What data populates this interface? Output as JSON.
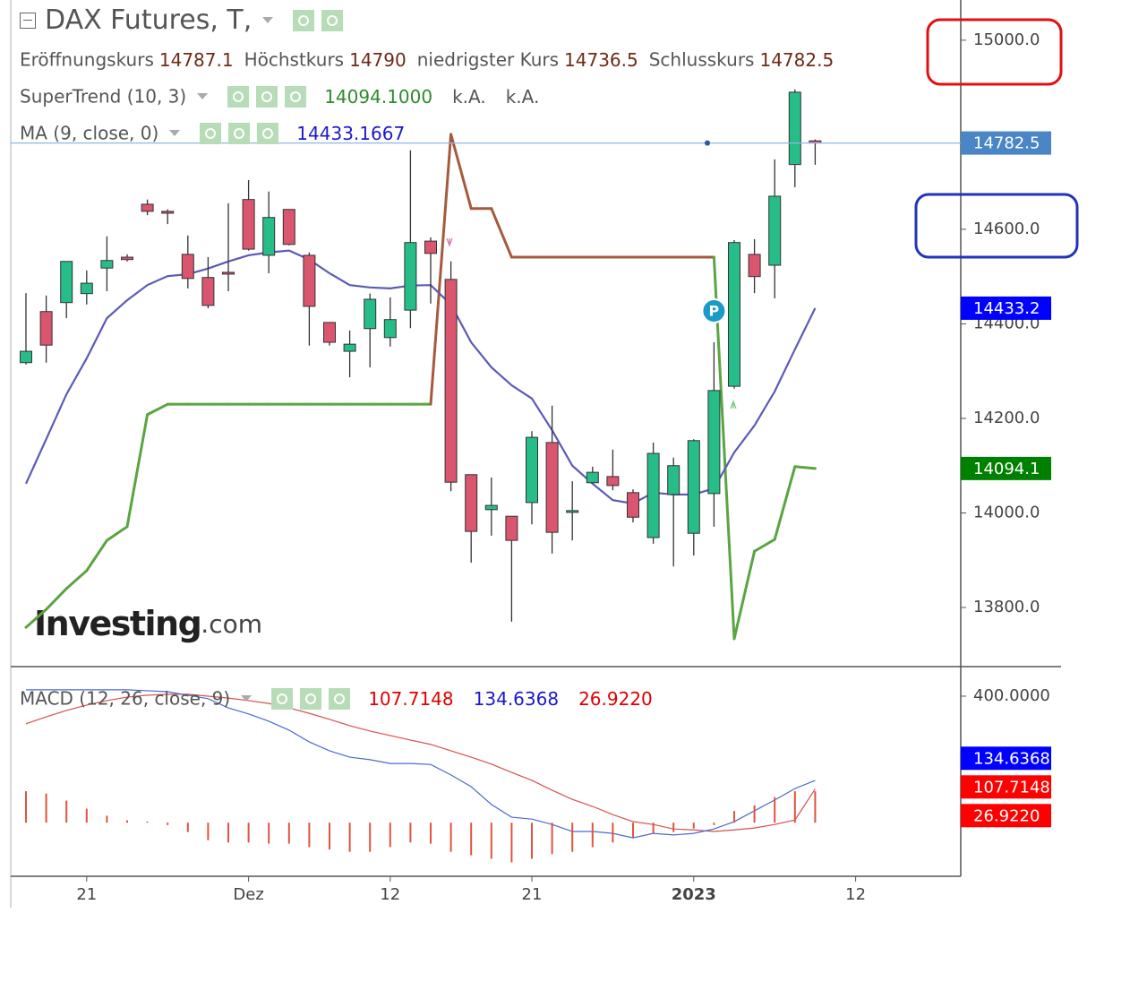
{
  "chart_data": [
    {
      "type": "candlestick",
      "title": "DAX Futures, T,",
      "ohlc_labels": [
        "Eröffnungskurs",
        "Höchstkurs",
        "niedrigster Kurs",
        "Schlusskurs"
      ],
      "open": [
        14318,
        14426,
        14445,
        14464,
        14518,
        14541,
        14653,
        14638,
        14547,
        14498,
        14509,
        14663,
        14545,
        14642,
        14545,
        14403,
        14342,
        14390,
        14371,
        14429,
        14575,
        14494,
        14081,
        14007,
        13993,
        14022,
        14149,
        14003,
        14064,
        14077,
        14043,
        13948,
        14039,
        13957,
        14041,
        14268,
        14547,
        14524,
        14737,
        14787.1,
        null,
        null
      ],
      "high": [
        14465,
        14460,
        14532,
        14513,
        14585,
        14547,
        14663,
        14642,
        14587,
        14541,
        14655,
        14704,
        14680,
        14642,
        14551,
        14403,
        14386,
        14464,
        14456,
        14767,
        14583,
        14532,
        14081,
        14075,
        13993,
        14173,
        14227,
        14067,
        14098,
        14134,
        14050,
        14149,
        14117,
        14156,
        14361,
        14577,
        14579,
        14748,
        14896,
        14790,
        null,
        null
      ],
      "low": [
        14314,
        14318,
        14412,
        14441,
        14469,
        14532,
        14630,
        14611,
        14475,
        14433,
        14469,
        14555,
        14507,
        14566,
        14354,
        14354,
        14287,
        14308,
        14352,
        14391,
        14443,
        14046,
        13895,
        13952,
        13770,
        13976,
        13914,
        13942,
        14062,
        14048,
        13980,
        13935,
        13887,
        13910,
        13971,
        14263,
        14465,
        14454,
        14689,
        14736.5,
        null,
        null
      ],
      "close": [
        14342,
        14355,
        14532,
        14486,
        14534,
        14536,
        14638,
        14634,
        14496,
        14439,
        14507,
        14558,
        14625,
        14568,
        14437,
        14361,
        14357,
        14452,
        14409,
        14572,
        14549,
        14065,
        13961,
        14016,
        13942,
        14160,
        13959,
        14005,
        14086,
        14058,
        13991,
        14126,
        14100,
        14153,
        14259,
        14572,
        14500,
        14670,
        14890,
        14782.5,
        null,
        null
      ],
      "up_color": "#26bd88",
      "down_color": "#d9566e",
      "last_price_color": "#4a86c5",
      "ylim": [
        13675,
        15085
      ],
      "yticks": [
        {
          "value": 13800,
          "label": "13800.0"
        },
        {
          "value": 14000,
          "label": "14000.0"
        },
        {
          "value": 14200,
          "label": "14200.0"
        },
        {
          "value": 14400,
          "label": "14400.0"
        },
        {
          "value": 14600,
          "label": "14600.0"
        },
        {
          "value": 15000,
          "label": "15000.0"
        }
      ],
      "overlays": [
        {
          "name": "SuperTrend (10, 3)",
          "type": "line",
          "values": [
            13758,
            13796,
            13840,
            13878,
            13942,
            13971,
            14208,
            14230,
            14230,
            14230,
            14230,
            14230,
            14230,
            14230,
            14230,
            14230,
            14230,
            14230,
            14230,
            14230,
            14230,
            14801,
            14644,
            14644,
            14541,
            14541,
            14541,
            14541,
            14541,
            14541,
            14541,
            14541,
            14541,
            14541,
            14541,
            13734,
            13919,
            13944,
            14098,
            14094.1,
            null,
            null
          ],
          "colors": [
            "#5aa540",
            "#5aa540",
            "#5aa540",
            "#5aa540",
            "#5aa540",
            "#5aa540",
            "#5aa540",
            "#5aa540",
            "#5aa540",
            "#5aa540",
            "#5aa540",
            "#5aa540",
            "#5aa540",
            "#5aa540",
            "#5aa540",
            "#5aa540",
            "#5aa540",
            "#5aa540",
            "#5aa540",
            "#5aa540",
            "#5aa540",
            "#a65a3d",
            "#a65a3d",
            "#a65a3d",
            "#a65a3d",
            "#a65a3d",
            "#a65a3d",
            "#a65a3d",
            "#a65a3d",
            "#a65a3d",
            "#a65a3d",
            "#a65a3d",
            "#a65a3d",
            "#a65a3d",
            "#a65a3d",
            "#5aa540",
            "#5aa540",
            "#5aa540",
            "#5aa540",
            "#5aa540",
            null,
            null
          ],
          "legend_value": "14094.1000",
          "legend_extra": [
            "k.A.",
            "k.A."
          ],
          "label_color": "#008000"
        },
        {
          "name": "MA (9, close, 0)",
          "type": "line",
          "color": "#5a5ab8",
          "values": [
            14062,
            14156,
            14251,
            14327,
            14412,
            14450,
            14482,
            14501,
            14505,
            14517,
            14532,
            14545,
            14551,
            14555,
            14536,
            14507,
            14482,
            14477,
            14475,
            14481,
            14482,
            14441,
            14361,
            14308,
            14270,
            14242,
            14175,
            14100,
            14062,
            14027,
            14020,
            14043,
            14039,
            14039,
            14052,
            14128,
            14185,
            14257,
            14346,
            14433.1667,
            null,
            null
          ],
          "value_labels": [
            null,
            null,
            null,
            null,
            null,
            null,
            null,
            null,
            null,
            null,
            null,
            null,
            null,
            null,
            null,
            null,
            null,
            null,
            null,
            null,
            null,
            null,
            null,
            null,
            null,
            null,
            null,
            null,
            null,
            null,
            null,
            null,
            null,
            null,
            null,
            null,
            null,
            null,
            null,
            "14433.2",
            null,
            null
          ],
          "label_color": "#0000ff"
        }
      ],
      "watermark": {
        "main": "Investing",
        "suffix": ".com"
      },
      "annotations": [
        {
          "text": "P"
        }
      ]
    },
    {
      "type": "macd",
      "title": "MACD (12, 26, close, 9)",
      "categories": [
        null,
        null,
        null,
        "21",
        null,
        null,
        null,
        null,
        null,
        null,
        null,
        "Dez",
        null,
        null,
        null,
        null,
        null,
        null,
        "12",
        null,
        null,
        null,
        null,
        null,
        null,
        "21",
        null,
        null,
        null,
        null,
        null,
        null,
        null,
        "2023",
        null,
        null,
        null,
        null,
        null,
        null,
        null,
        "12"
      ],
      "ylim": [
        -167,
        493
      ],
      "yticks": [
        {
          "value": 400,
          "label": "400.0000"
        }
      ],
      "y2lim": [
        -46,
        134
      ],
      "series": [
        {
          "type": "line",
          "color": "#d65050",
          "label_color": "#ff0000",
          "values": [
            313,
            335,
            355,
            372,
            386,
            397,
            403,
            406,
            406,
            400,
            394,
            386,
            377,
            363,
            346,
            327,
            307,
            290,
            276,
            262,
            248,
            228,
            208,
            186,
            160,
            135,
            104,
            75,
            53,
            27,
            5,
            -4,
            -18,
            -21,
            -26,
            -21,
            -15,
            -4,
            10,
            107.7148,
            null,
            null
          ]
        },
        {
          "type": "line",
          "color": "#4a6ad0",
          "label_color": "#0000ff",
          "values": [
            420,
            420,
            420,
            420,
            420,
            420,
            417,
            414,
            403,
            392,
            363,
            344,
            321,
            293,
            256,
            228,
            208,
            200,
            188,
            188,
            185,
            152,
            115,
            59,
            19,
            13,
            -4,
            -26,
            -26,
            -32,
            -46,
            -32,
            -37,
            -32,
            -18,
            5,
            39,
            73,
            109,
            134.6368,
            null,
            null
          ]
        },
        {
          "type": "bar",
          "axis": "y2",
          "color": "#e0533d",
          "label_color": "#ff0000",
          "values": [
            27,
            25,
            19,
            12,
            6,
            2,
            1,
            -2,
            -8,
            -15,
            -17,
            -17,
            -18,
            -18,
            -21,
            -23,
            -25,
            -25,
            -21,
            -17,
            -18,
            -25,
            -28,
            -31,
            -34,
            -31,
            -27,
            -25,
            -21,
            -17,
            -13,
            -9,
            -8,
            -5,
            -2,
            10,
            15,
            22,
            27,
            26.922,
            null,
            null
          ],
          "value_labels": [
            null,
            null,
            null,
            null,
            null,
            null,
            null,
            null,
            null,
            null,
            null,
            null,
            null,
            null,
            null,
            null,
            null,
            null,
            null,
            null,
            null,
            null,
            null,
            null,
            null,
            null,
            null,
            null,
            null,
            null,
            null,
            null,
            null,
            null,
            null,
            null,
            null,
            null,
            null,
            "26.9220",
            null,
            null
          ]
        }
      ]
    }
  ]
}
